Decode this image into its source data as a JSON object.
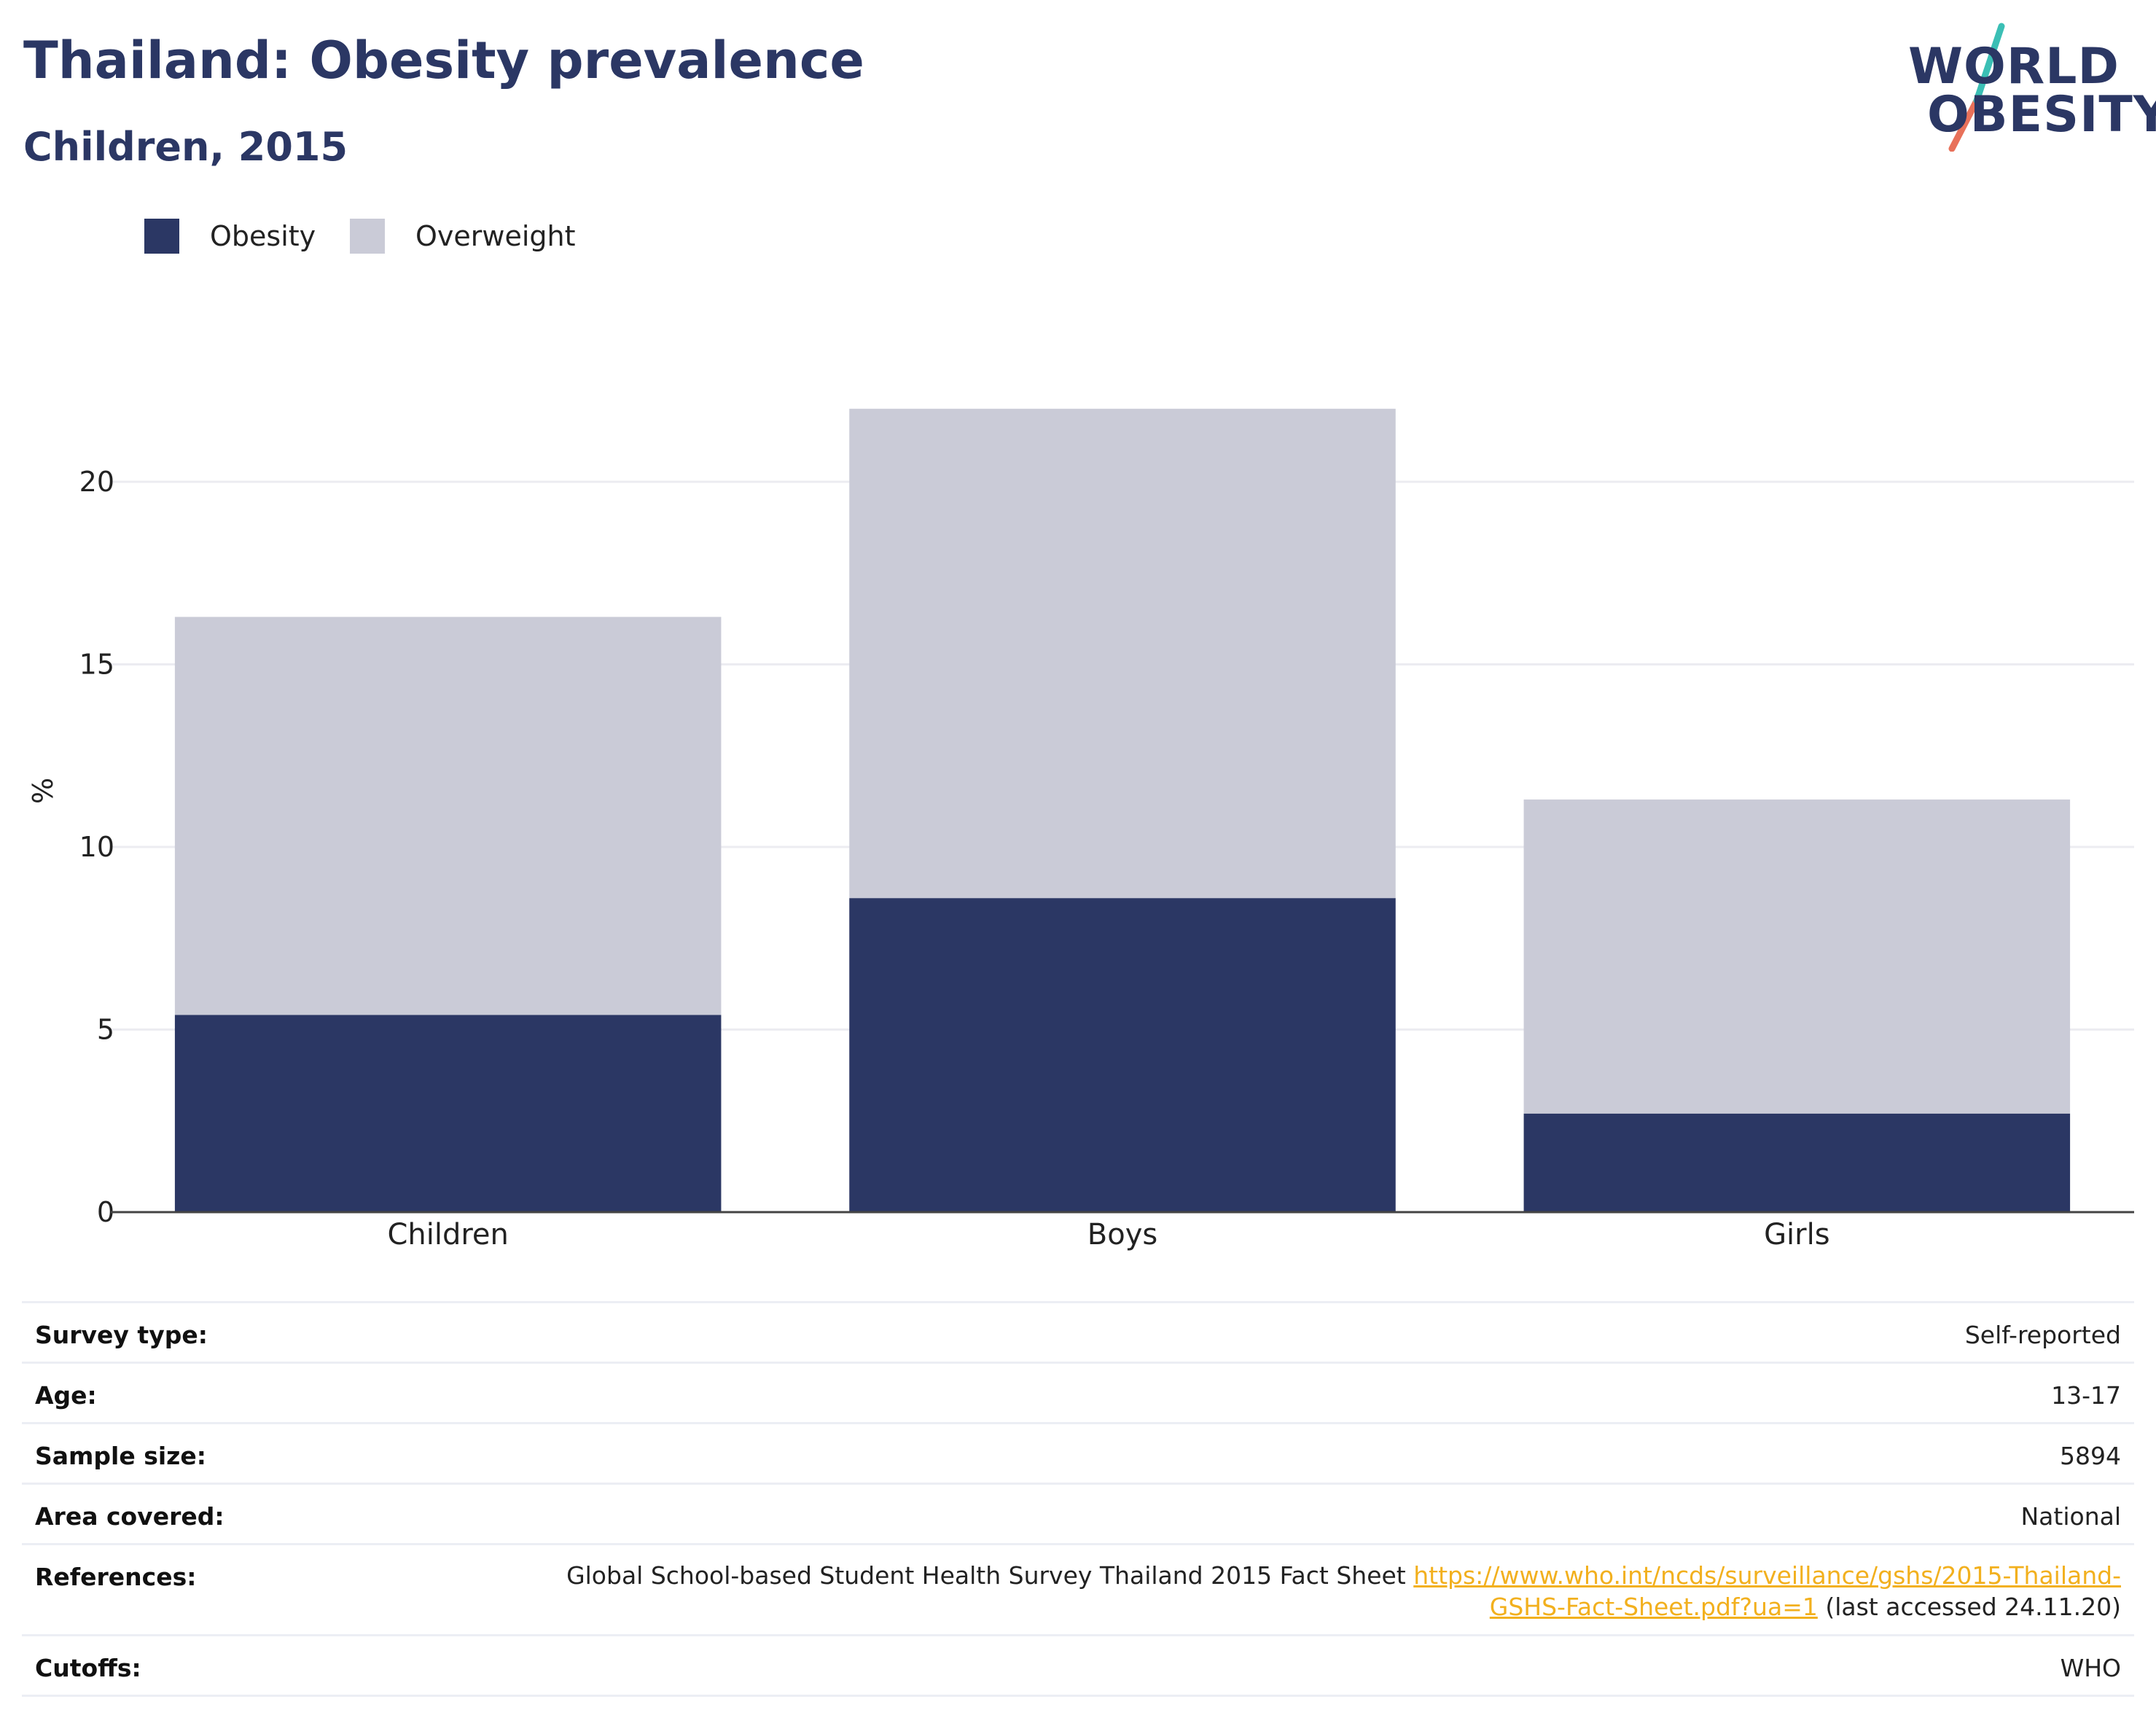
{
  "header": {
    "title": "Thailand: Obesity prevalence",
    "subtitle": "Children, 2015"
  },
  "logo": {
    "line1": "WORLD",
    "line2": "OBESITY",
    "colors": {
      "text": "#2b3764",
      "teal": "#3bbfb5",
      "coral": "#e8715a"
    }
  },
  "legend": {
    "items": [
      {
        "label": "Obesity",
        "color": "#2b3764"
      },
      {
        "label": "Overweight",
        "color": "#cacbd7"
      }
    ]
  },
  "chart_data": {
    "type": "bar",
    "stacked": true,
    "categories": [
      "Children",
      "Boys",
      "Girls"
    ],
    "series": [
      {
        "name": "Obesity",
        "values": [
          5.4,
          8.6,
          2.7
        ],
        "color": "#2b3764"
      },
      {
        "name": "Overweight",
        "values": [
          10.9,
          13.4,
          8.6
        ],
        "color": "#cacbd7"
      }
    ],
    "ylabel": "%",
    "xlabel": "",
    "ylim": [
      0,
      23
    ],
    "yticks": [
      0,
      5,
      10,
      15,
      20
    ],
    "grid": true,
    "legend_position": "top-left"
  },
  "info": {
    "rows": [
      {
        "label": "Survey type:",
        "value": "Self-reported"
      },
      {
        "label": "Age:",
        "value": "13-17"
      },
      {
        "label": "Sample size:",
        "value": "5894"
      },
      {
        "label": "Area covered:",
        "value": "National"
      },
      {
        "label": "Cutoffs:",
        "value": "WHO"
      }
    ],
    "references": {
      "label": "References:",
      "text_before": "Global School-based Student Health Survey Thailand 2015 Fact Sheet",
      "link_line1": "https://www.who.int/ncds/surveillance/gshs/2015-Thailand-",
      "link_line2": "GSHS-Fact-Sheet.pdf?ua=1",
      "text_after": "(last accessed 24.11.20)"
    }
  }
}
